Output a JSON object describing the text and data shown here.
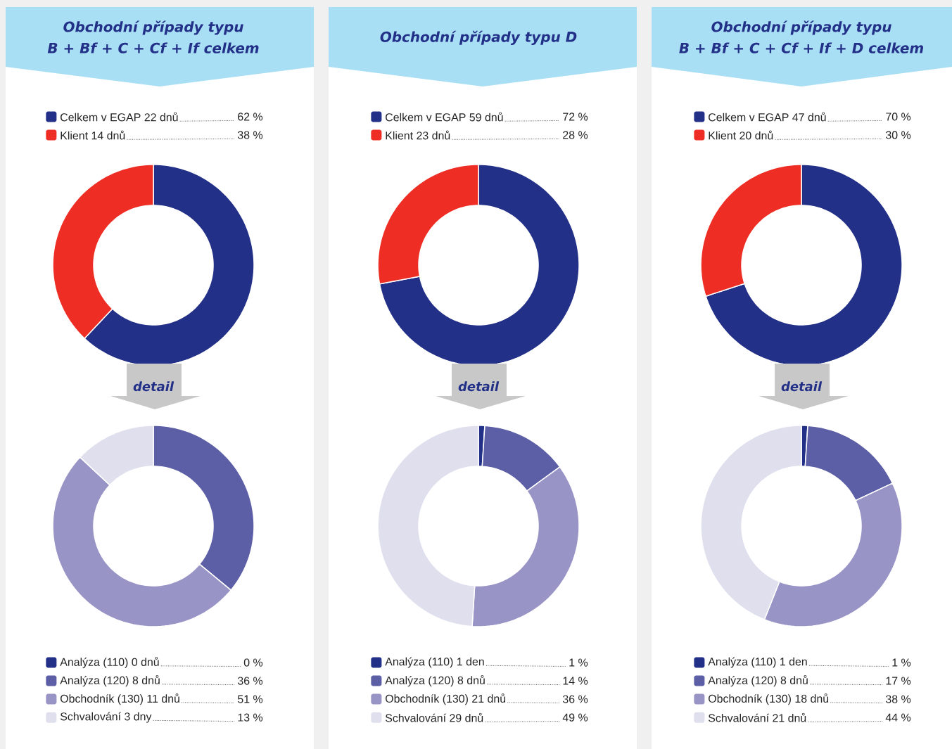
{
  "chart_data": [
    {
      "type": "donut",
      "title": "Obchodní případy typu",
      "subtitle": "B + Bf + C + Cf + If celkem",
      "legend": "top",
      "categories": [
        "Celkem v EGAP 22 dnů",
        "Klient 14 dnů"
      ],
      "values": [
        62,
        38
      ],
      "value_labels": [
        "62 %",
        "38 %"
      ],
      "colors": [
        "#233088",
        "#ee2e24"
      ]
    },
    {
      "type": "donut",
      "title": "Obchodní případy typu D",
      "legend": "top",
      "categories": [
        "Celkem v EGAP 59 dnů",
        "Klient 23 dnů"
      ],
      "values": [
        72,
        28
      ],
      "value_labels": [
        "72 %",
        "28 %"
      ],
      "colors": [
        "#233088",
        "#ee2e24"
      ]
    },
    {
      "type": "donut",
      "title": "Obchodní případy typu",
      "subtitle": "B + Bf + C + Cf + If + D celkem",
      "legend": "top",
      "categories": [
        "Celkem v EGAP 47 dnů",
        "Klient 20 dnů"
      ],
      "values": [
        70,
        30
      ],
      "value_labels": [
        "70 %",
        "30 %"
      ],
      "colors": [
        "#233088",
        "#ee2e24"
      ]
    },
    {
      "type": "donut",
      "title": "detail",
      "legend": "bottom",
      "categories": [
        "Analýza (110) 0 dnů",
        "Analýza (120) 8 dnů",
        "Obchodník (130) 11 dnů",
        "Schvalování 3 dny"
      ],
      "values": [
        0,
        36,
        51,
        13
      ],
      "value_labels": [
        "0 %",
        "36 %",
        "51 %",
        "13 %"
      ],
      "colors": [
        "#233088",
        "#5c5ea6",
        "#9894c6",
        "#e0dfee"
      ]
    },
    {
      "type": "donut",
      "title": "detail",
      "legend": "bottom",
      "categories": [
        "Analýza (110) 1 den",
        "Analýza (120) 8 dnů",
        "Obchodník (130) 21 dnů",
        "Schvalování 29 dnů"
      ],
      "values": [
        1,
        14,
        36,
        49
      ],
      "value_labels": [
        "1 %",
        "14 %",
        "36 %",
        "49 %"
      ],
      "colors": [
        "#233088",
        "#5c5ea6",
        "#9894c6",
        "#e0dfee"
      ]
    },
    {
      "type": "donut",
      "title": "detail",
      "legend": "bottom",
      "categories": [
        "Analýza (110) 1 den",
        "Analýza (120) 8 dnů",
        "Obchodník (130) 18 dnů",
        "Schvalování 21 dnů"
      ],
      "values": [
        1,
        17,
        38,
        44
      ],
      "value_labels": [
        "1 %",
        "17 %",
        "38 %",
        "44 %"
      ],
      "colors": [
        "#233088",
        "#5c5ea6",
        "#9894c6",
        "#e0dfee"
      ]
    }
  ]
}
